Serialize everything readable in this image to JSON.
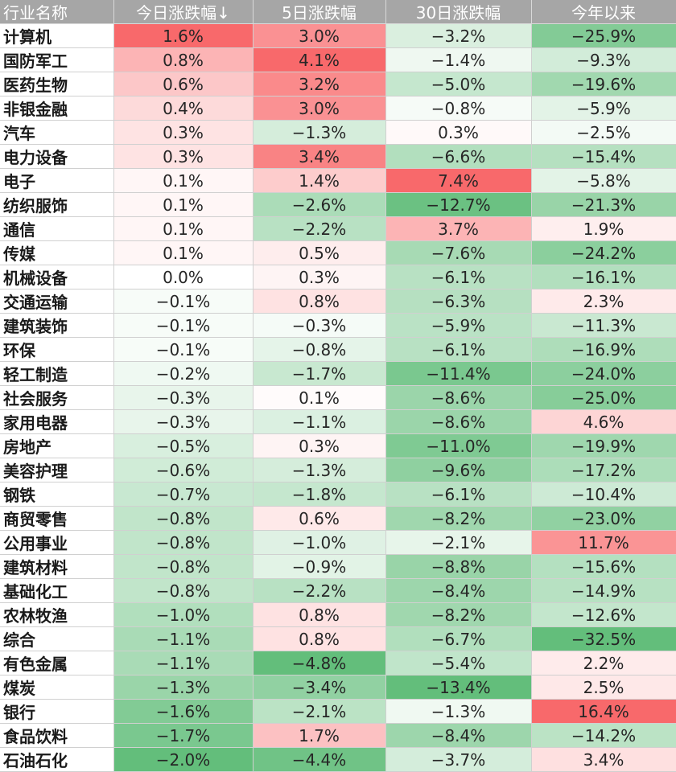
{
  "chart_data": {
    "type": "table",
    "columns": [
      "行业名称",
      "今日涨跌幅↓",
      "5日涨跌幅",
      "30日涨跌幅",
      "今年以来"
    ],
    "rows": [
      {
        "name": "计算机",
        "values": [
          1.6,
          3.0,
          -3.2,
          -25.9
        ]
      },
      {
        "name": "国防军工",
        "values": [
          0.8,
          4.1,
          -1.4,
          -9.3
        ]
      },
      {
        "name": "医药生物",
        "values": [
          0.6,
          3.2,
          -5.0,
          -19.6
        ]
      },
      {
        "name": "非银金融",
        "values": [
          0.4,
          3.0,
          -0.8,
          -5.9
        ]
      },
      {
        "name": "汽车",
        "values": [
          0.3,
          -1.3,
          0.3,
          -2.5
        ]
      },
      {
        "name": "电力设备",
        "values": [
          0.3,
          3.4,
          -6.6,
          -15.4
        ]
      },
      {
        "name": "电子",
        "values": [
          0.1,
          1.4,
          7.4,
          -5.8
        ]
      },
      {
        "name": "纺织服饰",
        "values": [
          0.1,
          -2.6,
          -12.7,
          -21.3
        ]
      },
      {
        "name": "通信",
        "values": [
          0.1,
          -2.2,
          3.7,
          1.9
        ]
      },
      {
        "name": "传媒",
        "values": [
          0.1,
          0.5,
          -7.6,
          -24.2
        ]
      },
      {
        "name": "机械设备",
        "values": [
          0.0,
          0.3,
          -6.1,
          -16.1
        ]
      },
      {
        "name": "交通运输",
        "values": [
          -0.1,
          0.8,
          -6.3,
          2.3
        ]
      },
      {
        "name": "建筑装饰",
        "values": [
          -0.1,
          -0.3,
          -5.9,
          -11.3
        ]
      },
      {
        "name": "环保",
        "values": [
          -0.1,
          -0.8,
          -6.1,
          -16.9
        ]
      },
      {
        "name": "轻工制造",
        "values": [
          -0.2,
          -1.7,
          -11.4,
          -24.0
        ]
      },
      {
        "name": "社会服务",
        "values": [
          -0.3,
          0.1,
          -8.6,
          -25.0
        ]
      },
      {
        "name": "家用电器",
        "values": [
          -0.3,
          -1.1,
          -8.6,
          4.6
        ]
      },
      {
        "name": "房地产",
        "values": [
          -0.5,
          0.3,
          -11.0,
          -19.9
        ]
      },
      {
        "name": "美容护理",
        "values": [
          -0.6,
          -1.3,
          -9.6,
          -17.2
        ]
      },
      {
        "name": "钢铁",
        "values": [
          -0.7,
          -1.8,
          -6.1,
          -10.4
        ]
      },
      {
        "name": "商贸零售",
        "values": [
          -0.8,
          0.6,
          -8.2,
          -23.0
        ]
      },
      {
        "name": "公用事业",
        "values": [
          -0.8,
          -1.0,
          -2.1,
          11.7
        ]
      },
      {
        "name": "建筑材料",
        "values": [
          -0.8,
          -0.9,
          -8.8,
          -15.6
        ]
      },
      {
        "name": "基础化工",
        "values": [
          -0.8,
          -2.2,
          -8.4,
          -14.9
        ]
      },
      {
        "name": "农林牧渔",
        "values": [
          -1.0,
          0.8,
          -8.2,
          -12.6
        ]
      },
      {
        "name": "综合",
        "values": [
          -1.1,
          0.8,
          -6.7,
          -32.5
        ]
      },
      {
        "name": "有色金属",
        "values": [
          -1.1,
          -4.8,
          -5.4,
          2.2
        ]
      },
      {
        "name": "煤炭",
        "values": [
          -1.3,
          -3.4,
          -13.4,
          2.5
        ]
      },
      {
        "name": "银行",
        "values": [
          -1.6,
          -2.1,
          -1.3,
          16.4
        ]
      },
      {
        "name": "食品饮料",
        "values": [
          -1.7,
          1.7,
          -8.4,
          -14.2
        ]
      },
      {
        "name": "石油石化",
        "values": [
          -2.0,
          -4.4,
          -3.7,
          3.4
        ]
      }
    ]
  },
  "colors": {
    "header_bg": "#a6a6a6",
    "header_text": "#ffffff",
    "positive_max": "#f8696b",
    "negative_max": "#63be7b",
    "neutral": "#ffffff"
  }
}
